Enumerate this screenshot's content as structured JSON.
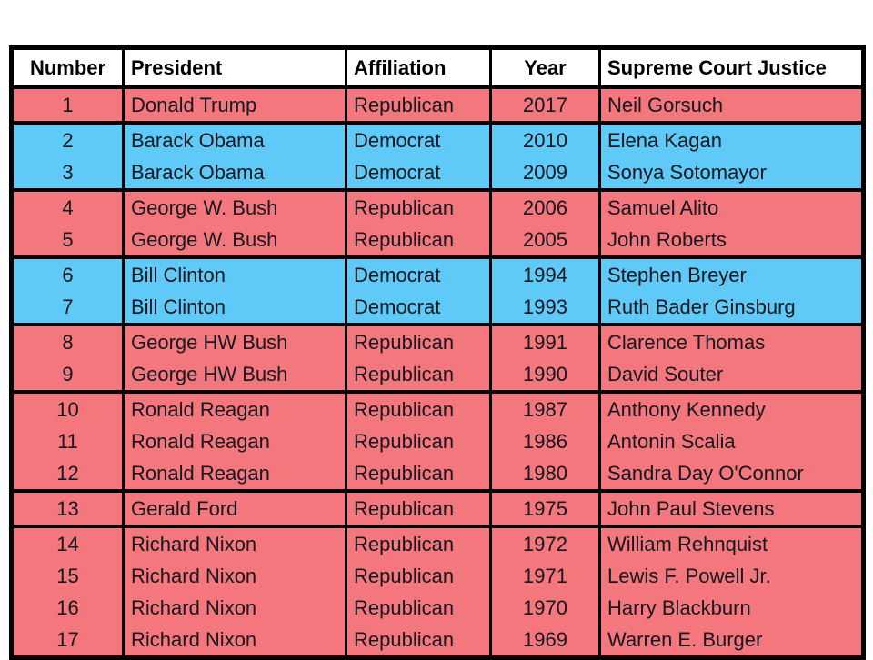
{
  "colors": {
    "republican": "#F4777D",
    "democrat": "#5FC9F7",
    "border": "#000000",
    "header_bg": "#FFFFFF",
    "text": "#17171F"
  },
  "chart_data": {
    "type": "table",
    "columns": [
      "Number",
      "President",
      "Affiliation",
      "Year",
      "Supreme Court Justice"
    ],
    "groups": [
      {
        "president": "Donald Trump",
        "party": "Republican",
        "rows": [
          [
            "1",
            "Donald Trump",
            "Republican",
            "2017",
            "Neil Gorsuch"
          ]
        ]
      },
      {
        "president": "Barack Obama",
        "party": "Democrat",
        "rows": [
          [
            "2",
            "Barack Obama",
            "Democrat",
            "2010",
            "Elena Kagan"
          ],
          [
            "3",
            "Barack Obama",
            "Democrat",
            "2009",
            "Sonya Sotomayor"
          ]
        ]
      },
      {
        "president": "George W. Bush",
        "party": "Republican",
        "rows": [
          [
            "4",
            "George W. Bush",
            "Republican",
            "2006",
            "Samuel Alito"
          ],
          [
            "5",
            "George W. Bush",
            "Republican",
            "2005",
            "John Roberts"
          ]
        ]
      },
      {
        "president": "Bill Clinton",
        "party": "Democrat",
        "rows": [
          [
            "6",
            "Bill Clinton",
            "Democrat",
            "1994",
            "Stephen Breyer"
          ],
          [
            "7",
            "Bill Clinton",
            "Democrat",
            "1993",
            "Ruth Bader Ginsburg"
          ]
        ]
      },
      {
        "president": "George HW Bush",
        "party": "Republican",
        "rows": [
          [
            "8",
            "George HW Bush",
            "Republican",
            "1991",
            "Clarence Thomas"
          ],
          [
            "9",
            "George HW Bush",
            "Republican",
            "1990",
            "David Souter"
          ]
        ]
      },
      {
        "president": "Ronald Reagan",
        "party": "Republican",
        "rows": [
          [
            "10",
            "Ronald Reagan",
            "Republican",
            "1987",
            "Anthony Kennedy"
          ],
          [
            "11",
            "Ronald Reagan",
            "Republican",
            "1986",
            "Antonin Scalia"
          ],
          [
            "12",
            "Ronald Reagan",
            "Republican",
            "1980",
            "Sandra Day O'Connor"
          ]
        ]
      },
      {
        "president": "Gerald Ford",
        "party": "Republican",
        "rows": [
          [
            "13",
            "Gerald Ford",
            "Republican",
            "1975",
            "John Paul Stevens"
          ]
        ]
      },
      {
        "president": "Richard Nixon",
        "party": "Republican",
        "rows": [
          [
            "14",
            "Richard Nixon",
            "Republican",
            "1972",
            "William Rehnquist"
          ],
          [
            "15",
            "Richard Nixon",
            "Republican",
            "1971",
            "Lewis F. Powell Jr."
          ],
          [
            "16",
            "Richard Nixon",
            "Republican",
            "1970",
            "Harry Blackburn"
          ],
          [
            "17",
            "Richard Nixon",
            "Republican",
            "1969",
            "Warren E. Burger"
          ]
        ]
      }
    ]
  }
}
